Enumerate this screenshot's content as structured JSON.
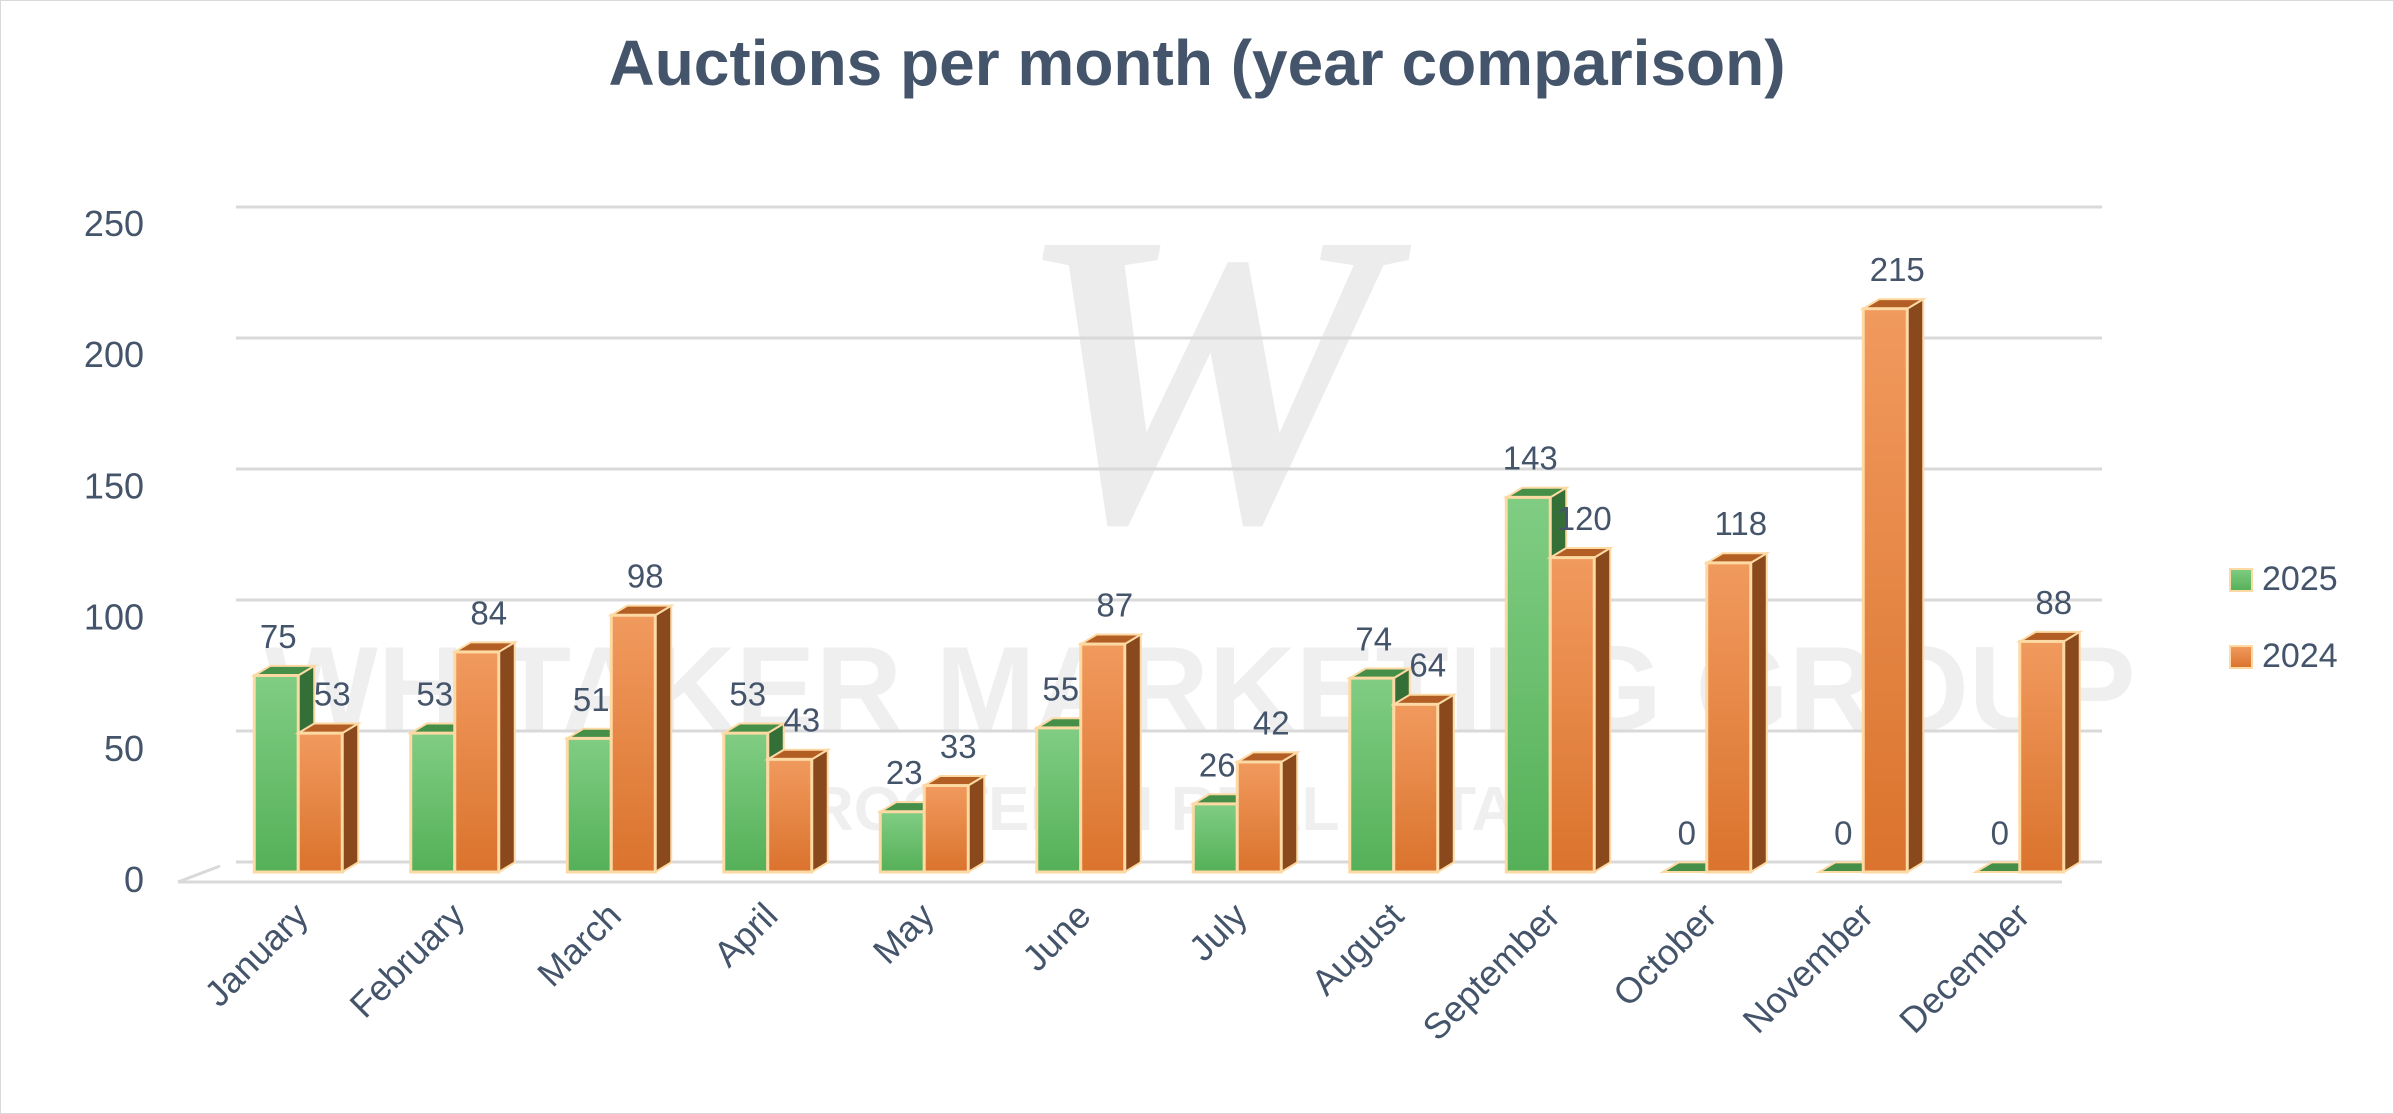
{
  "chart_data": {
    "type": "bar",
    "title": "Auctions per month (year comparison)",
    "xlabel": "",
    "ylabel": "",
    "categories": [
      "January",
      "February",
      "March",
      "April",
      "May",
      "June",
      "July",
      "August",
      "September",
      "October",
      "November",
      "December"
    ],
    "series": [
      {
        "name": "2025",
        "values": [
          75,
          53,
          51,
          53,
          23,
          55,
          26,
          74,
          143,
          0,
          0,
          0
        ],
        "color": "#5cbf60"
      },
      {
        "name": "2024",
        "values": [
          53,
          84,
          98,
          43,
          33,
          87,
          42,
          64,
          120,
          118,
          215,
          88
        ],
        "color": "#ed7d31"
      }
    ],
    "ylim": [
      0,
      250
    ],
    "yticks": [
      0,
      50,
      100,
      150,
      200,
      250
    ],
    "grid": true,
    "legend_position": "right",
    "style": "3d-clustered-column"
  },
  "watermark": {
    "monogram": "W",
    "text": "WHITAKER MARKETING GROUP",
    "subtext": "ROOTED IN REAL ESTATE"
  }
}
